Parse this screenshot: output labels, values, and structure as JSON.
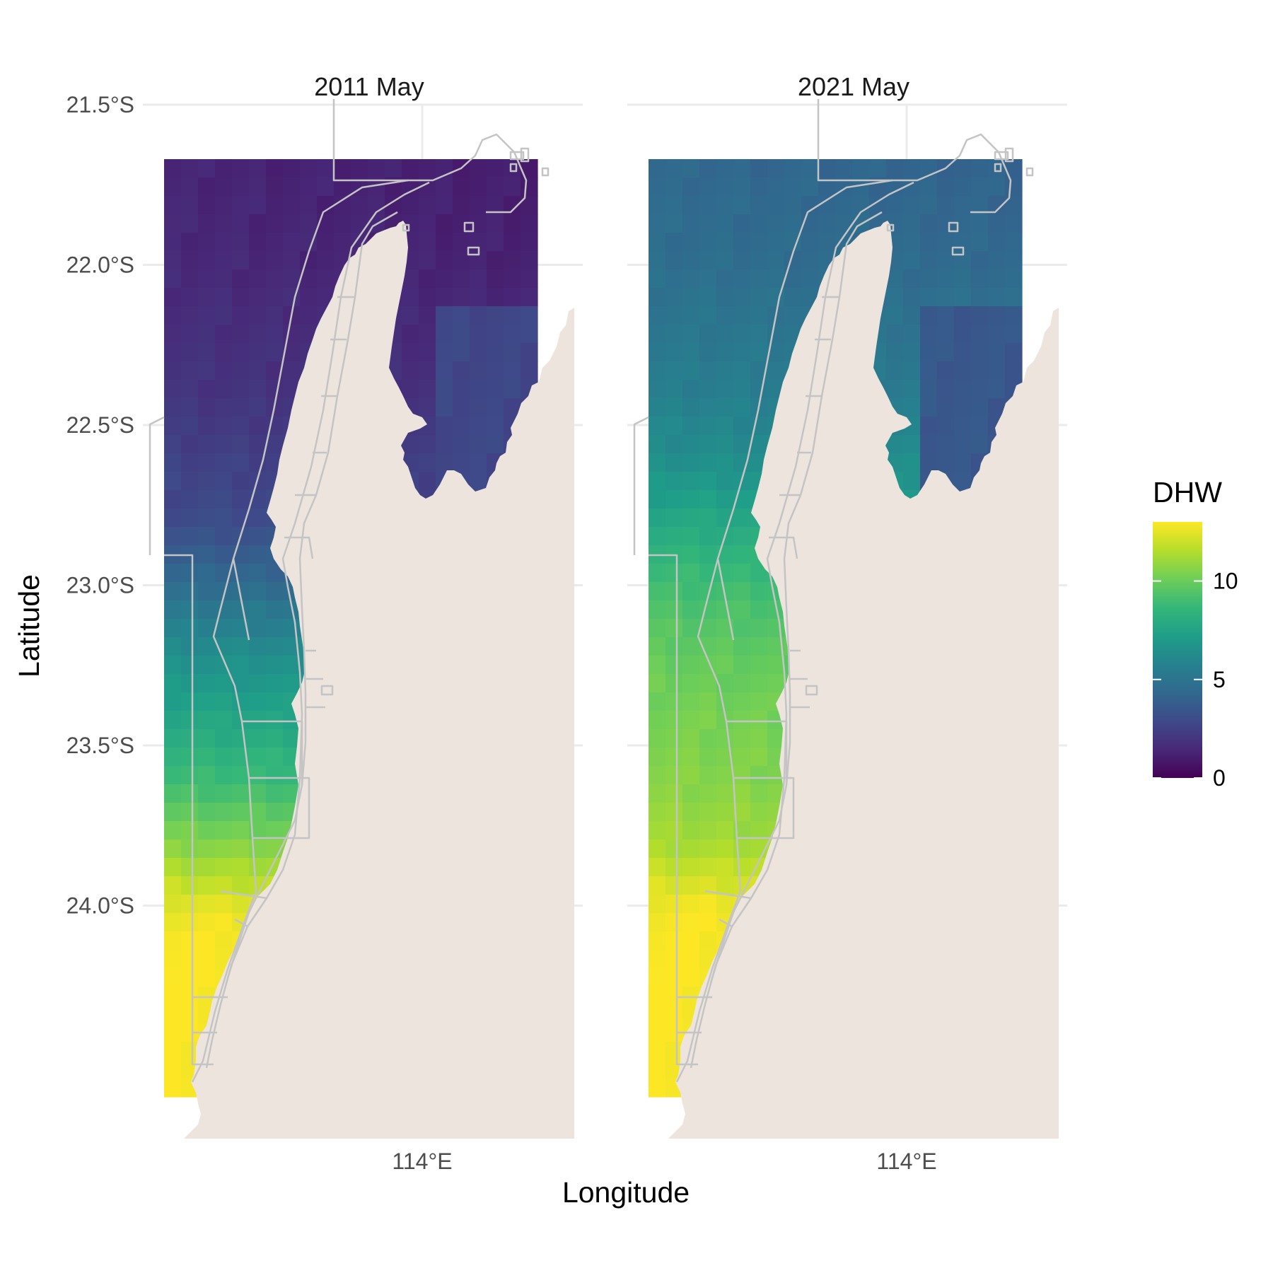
{
  "chart_data": {
    "type": "heatmap",
    "xlabel": "Longitude",
    "ylabel": "Latitude",
    "x_ticks": [
      {
        "value": 114.0,
        "label": "114°E"
      }
    ],
    "y_ticks": [
      {
        "value": -21.5,
        "label": "21.5°S"
      },
      {
        "value": -22.0,
        "label": "22.0°S"
      },
      {
        "value": -22.5,
        "label": "22.5°S"
      },
      {
        "value": -23.0,
        "label": "23.0°S"
      },
      {
        "value": -23.5,
        "label": "23.5°S"
      },
      {
        "value": -24.0,
        "label": "24.0°S"
      }
    ],
    "legend": {
      "title": "DHW",
      "position": "right",
      "limits": [
        0,
        13
      ],
      "ticks": [
        {
          "value": 0,
          "label": "0"
        },
        {
          "value": 5,
          "label": "5"
        },
        {
          "value": 10,
          "label": "10"
        }
      ]
    },
    "colors": {
      "viridis_stops": [
        "#440154",
        "#482878",
        "#3e4a89",
        "#31688e",
        "#26828e",
        "#1f9e89",
        "#35b779",
        "#6ece58",
        "#b5de2b",
        "#fde725"
      ],
      "land": "#ede4de",
      "boundary": "#c4c4c4",
      "grid": "#ebebeb"
    },
    "extent": {
      "lon": [
        113.35,
        114.55
      ],
      "lat": [
        -24.23,
        -21.4
      ]
    },
    "panels": [
      {
        "title": "2011 May",
        "dhw_profile": [
          {
            "lat": -21.6,
            "value": 1.3
          },
          {
            "lat": -22.0,
            "value": 1.5
          },
          {
            "lat": -22.4,
            "value": 2.0
          },
          {
            "lat": -22.8,
            "value": 3.0
          },
          {
            "lat": -23.0,
            "value": 4.6
          },
          {
            "lat": -23.2,
            "value": 6.3
          },
          {
            "lat": -23.4,
            "value": 7.6
          },
          {
            "lat": -23.6,
            "value": 8.8
          },
          {
            "lat": -23.8,
            "value": 10.5
          },
          {
            "lat": -24.0,
            "value": 12.5
          },
          {
            "lat": -24.1,
            "value": 13.0
          }
        ],
        "dhw_gulf": 3.0
      },
      {
        "title": "2021 May",
        "dhw_profile": [
          {
            "lat": -21.6,
            "value": 4.3
          },
          {
            "lat": -22.0,
            "value": 4.7
          },
          {
            "lat": -22.4,
            "value": 5.6
          },
          {
            "lat": -22.6,
            "value": 6.4
          },
          {
            "lat": -22.8,
            "value": 7.8
          },
          {
            "lat": -23.0,
            "value": 9.0
          },
          {
            "lat": -23.2,
            "value": 9.8
          },
          {
            "lat": -23.4,
            "value": 10.3
          },
          {
            "lat": -23.6,
            "value": 10.6
          },
          {
            "lat": -23.8,
            "value": 11.2
          },
          {
            "lat": -24.0,
            "value": 12.8
          },
          {
            "lat": -24.1,
            "value": 13.0
          }
        ],
        "dhw_gulf": 3.8
      }
    ]
  }
}
